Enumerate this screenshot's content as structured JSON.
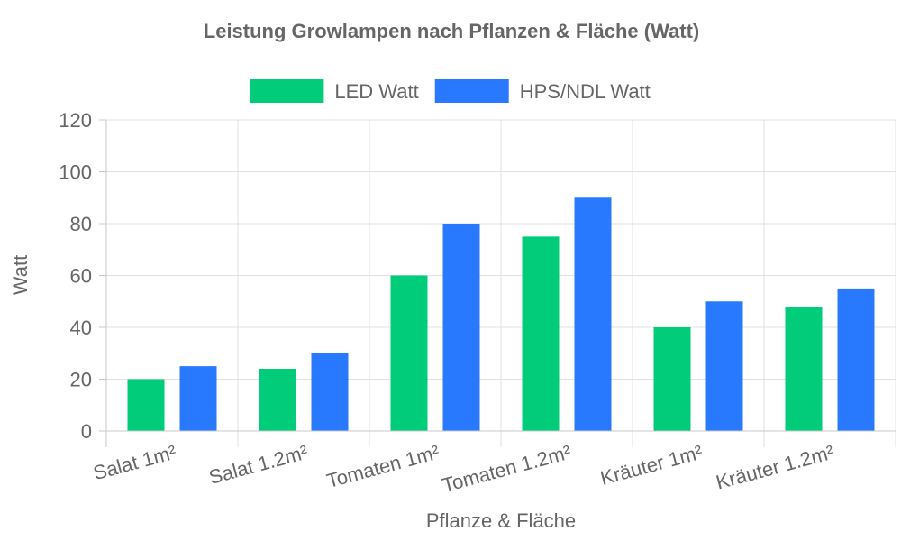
{
  "chart_data": {
    "type": "bar",
    "title": "Leistung Growlampen nach Pflanzen & Fläche (Watt)",
    "xlabel": "Pflanze & Fläche",
    "ylabel": "Watt",
    "categories": [
      "Salat 1m²",
      "Salat 1.2m²",
      "Tomaten 1m²",
      "Tomaten 1.2m²",
      "Kräuter 1m²",
      "Kräuter 1.2m²"
    ],
    "series": [
      {
        "name": "LED Watt",
        "color": "#00cc7a",
        "values": [
          20,
          24,
          60,
          75,
          40,
          48
        ]
      },
      {
        "name": "HPS/NDL Watt",
        "color": "#2979ff",
        "values": [
          25,
          30,
          80,
          90,
          50,
          55
        ]
      }
    ],
    "ylim": [
      0,
      120
    ],
    "yticks": [
      0,
      20,
      40,
      60,
      80,
      100,
      120
    ],
    "grid": true,
    "legend": "top-center"
  }
}
